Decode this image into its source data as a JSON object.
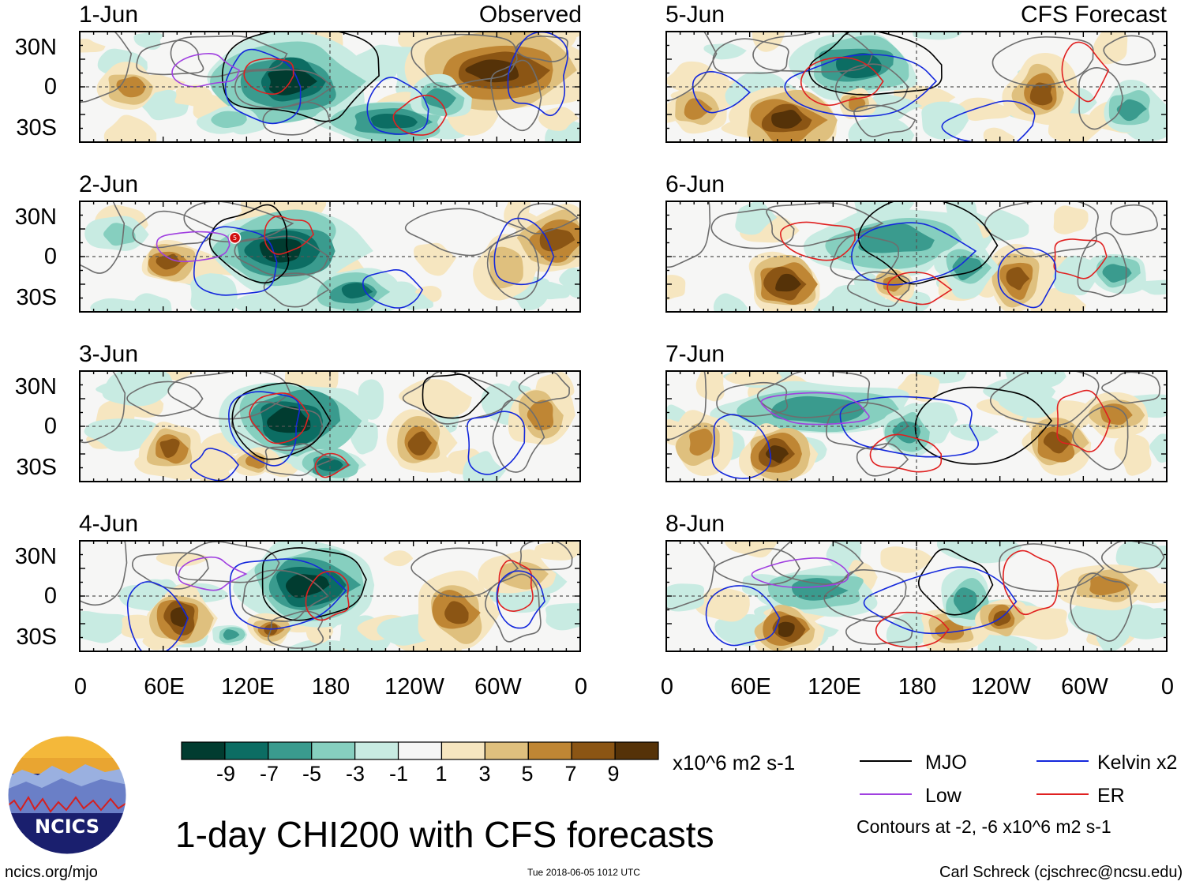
{
  "figure": {
    "title": "1-day CHI200 with CFS forecasts",
    "units": "x10^6 m2 s-1",
    "observed_label": "Observed",
    "forecast_label": "CFS Forecast",
    "contour_note": "Contours at -2, -6 x10^6 m2 s-1",
    "website": "ncics.org/mjo",
    "timestamp": "Tue 2018-06-05 1012 UTC",
    "author": "Carl Schreck (cjschrec@ncsu.edu)",
    "logo_text": "NCICS",
    "storm_marker": "5"
  },
  "panels": {
    "observed": [
      {
        "date": "1-Jun"
      },
      {
        "date": "2-Jun"
      },
      {
        "date": "3-Jun"
      },
      {
        "date": "4-Jun"
      }
    ],
    "forecast": [
      {
        "date": "5-Jun"
      },
      {
        "date": "6-Jun"
      },
      {
        "date": "7-Jun"
      },
      {
        "date": "8-Jun"
      }
    ]
  },
  "axes": {
    "lat_labels": [
      "30N",
      "0",
      "30S"
    ],
    "lon_labels": [
      "0",
      "60E",
      "120E",
      "180",
      "120W",
      "60W",
      "0"
    ]
  },
  "colorbar": {
    "labels": [
      "-9",
      "-7",
      "-5",
      "-3",
      "-1",
      "1",
      "3",
      "5",
      "7",
      "9"
    ],
    "colors": [
      "#013c30",
      "#0c6d63",
      "#3a9b8e",
      "#86cfbf",
      "#c8ebe2",
      "#f6f6f5",
      "#f6e6c0",
      "#dfc07e",
      "#bf8634",
      "#8b5514",
      "#553208"
    ]
  },
  "legend": [
    {
      "name": "MJO",
      "color": "#000000"
    },
    {
      "name": "Kelvin x2",
      "color": "#1428dc"
    },
    {
      "name": "Low",
      "color": "#a040e0"
    },
    {
      "name": "ER",
      "color": "#e02020"
    }
  ]
}
